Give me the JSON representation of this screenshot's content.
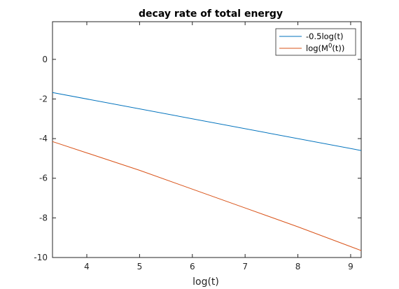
{
  "chart_data": {
    "type": "line",
    "title": "decay rate of total energy",
    "xlabel": "log(t)",
    "ylabel": "",
    "xlim": [
      3.35,
      9.2
    ],
    "ylim": [
      -10,
      1.9
    ],
    "xticks": [
      4,
      5,
      6,
      7,
      8,
      9
    ],
    "yticks": [
      -10,
      -8,
      -6,
      -4,
      -2,
      0
    ],
    "grid": false,
    "legend_position": "top-right",
    "series": [
      {
        "name": "-0.5log(t)",
        "color": "#0072bd",
        "x": [
          3.35,
          9.2
        ],
        "y": [
          -1.675,
          -4.6
        ]
      },
      {
        "name": "log(M(t))",
        "legend_label": {
          "base": "log(M",
          "sup": "0",
          "tail": "(t))"
        },
        "color": "#d95319",
        "x": [
          3.35,
          4.0,
          5.0,
          6.0,
          7.0,
          8.0,
          9.2
        ],
        "y": [
          -4.15,
          -4.72,
          -5.6,
          -6.55,
          -7.5,
          -8.45,
          -9.65
        ]
      }
    ]
  }
}
